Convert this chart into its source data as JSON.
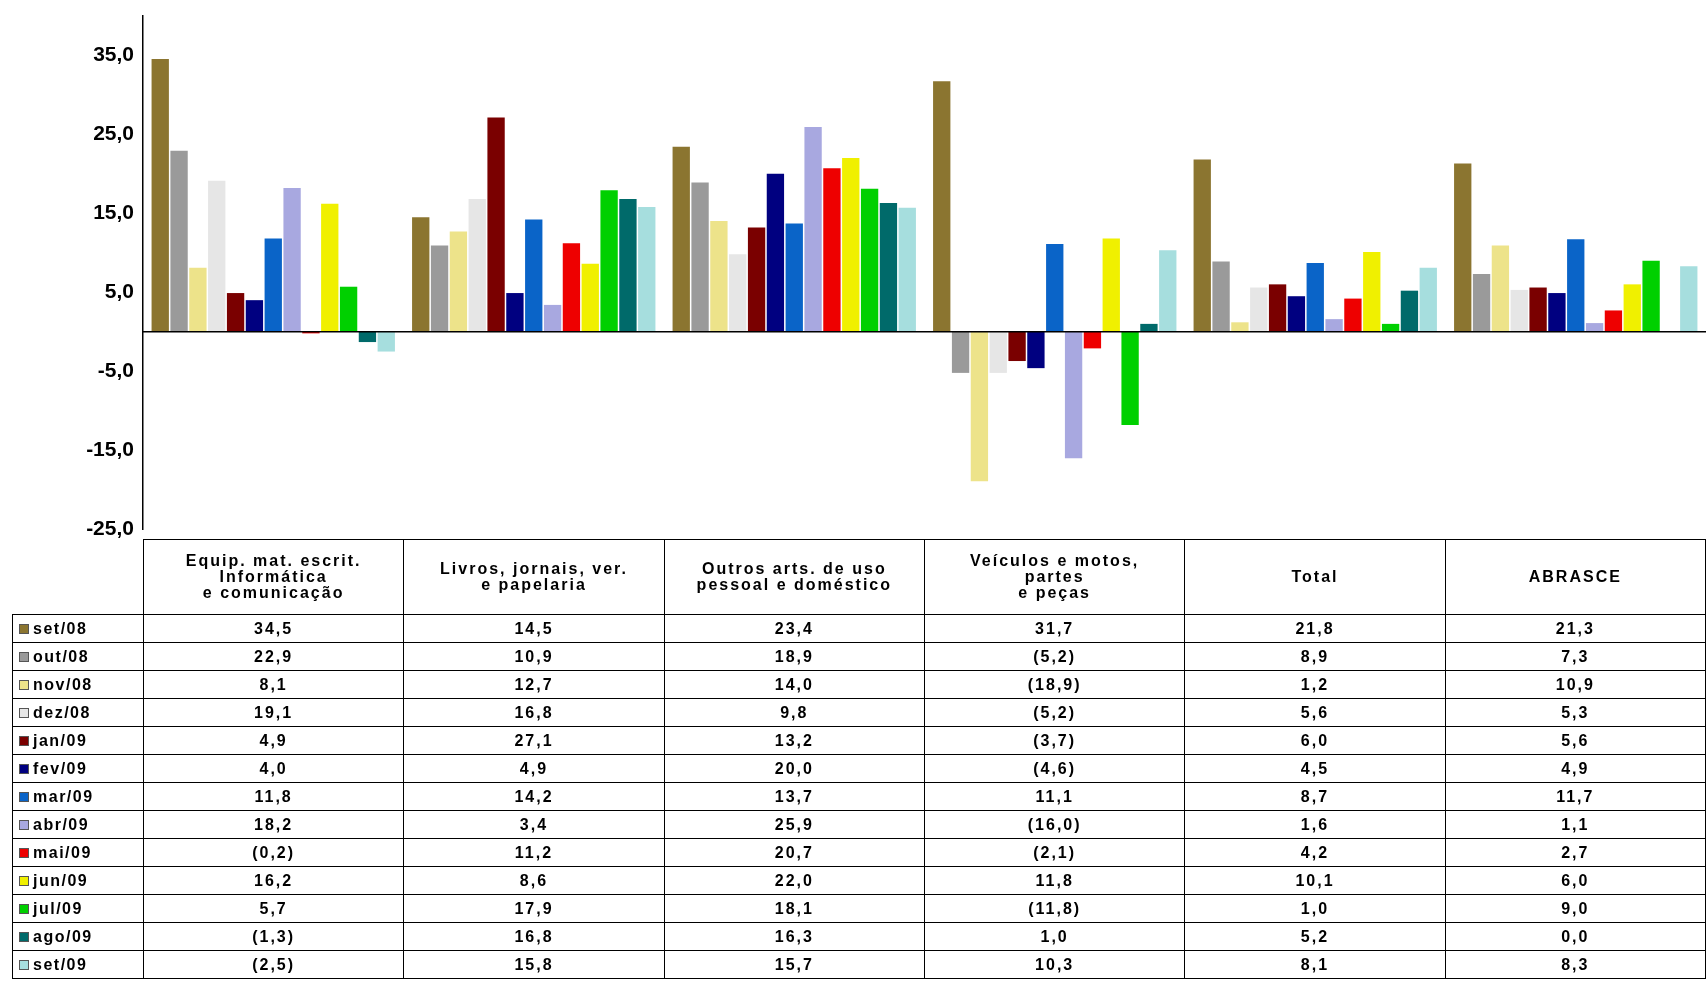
{
  "chart_data": {
    "type": "bar",
    "categories": [
      "Equip. mat. escrit.\nInformática\ne comunicação",
      "Livros, jornais, ver.\ne papelaria",
      "Outros arts. de uso\npessoal e doméstico",
      "Veículos e motos,\npartes\ne peças",
      "Total",
      "ABRASCE"
    ],
    "series": [
      {
        "name": "set/08",
        "color": "#8b7530",
        "values": [
          34.5,
          14.5,
          23.4,
          31.7,
          21.8,
          21.3
        ],
        "value_labels": [
          "34,5",
          "14,5",
          "23,4",
          "31,7",
          "21,8",
          "21,3"
        ]
      },
      {
        "name": "out/08",
        "color": "#9a9a9a",
        "values": [
          22.9,
          10.9,
          18.9,
          -5.2,
          8.9,
          7.3
        ],
        "value_labels": [
          "22,9",
          "10,9",
          "18,9",
          "(5,2)",
          "8,9",
          "7,3"
        ]
      },
      {
        "name": "nov/08",
        "color": "#ede38a",
        "values": [
          8.1,
          12.7,
          14.0,
          -18.9,
          1.2,
          10.9
        ],
        "value_labels": [
          "8,1",
          "12,7",
          "14,0",
          "(18,9)",
          "1,2",
          "10,9"
        ]
      },
      {
        "name": "dez/08",
        "color": "#e6e6e6",
        "values": [
          19.1,
          16.8,
          9.8,
          -5.2,
          5.6,
          5.3
        ],
        "value_labels": [
          "19,1",
          "16,8",
          "9,8",
          "(5,2)",
          "5,6",
          "5,3"
        ]
      },
      {
        "name": "jan/09",
        "color": "#7a0000",
        "values": [
          4.9,
          27.1,
          13.2,
          -3.7,
          6.0,
          5.6
        ],
        "value_labels": [
          "4,9",
          "27,1",
          "13,2",
          "(3,7)",
          "6,0",
          "5,6"
        ]
      },
      {
        "name": "fev/09",
        "color": "#000080",
        "values": [
          4.0,
          4.9,
          20.0,
          -4.6,
          4.5,
          4.9
        ],
        "value_labels": [
          "4,0",
          "4,9",
          "20,0",
          "(4,6)",
          "4,5",
          "4,9"
        ]
      },
      {
        "name": "mar/09",
        "color": "#0a64c8",
        "values": [
          11.8,
          14.2,
          13.7,
          11.1,
          8.7,
          11.7
        ],
        "value_labels": [
          "11,8",
          "14,2",
          "13,7",
          "11,1",
          "8,7",
          "11,7"
        ]
      },
      {
        "name": "abr/09",
        "color": "#a8a8e0",
        "values": [
          18.2,
          3.4,
          25.9,
          -16.0,
          1.6,
          1.1
        ],
        "value_labels": [
          "18,2",
          "3,4",
          "25,9",
          "(16,0)",
          "1,6",
          "1,1"
        ]
      },
      {
        "name": "mai/09",
        "color": "#ee0000",
        "values": [
          -0.2,
          11.2,
          20.7,
          -2.1,
          4.2,
          2.7
        ],
        "value_labels": [
          "(0,2)",
          "11,2",
          "20,7",
          "(2,1)",
          "4,2",
          "2,7"
        ]
      },
      {
        "name": "jun/09",
        "color": "#f0f000",
        "values": [
          16.2,
          8.6,
          22.0,
          11.8,
          10.1,
          6.0
        ],
        "value_labels": [
          "16,2",
          "8,6",
          "22,0",
          "11,8",
          "10,1",
          "6,0"
        ]
      },
      {
        "name": "jul/09",
        "color": "#00d000",
        "values": [
          5.7,
          17.9,
          18.1,
          -11.8,
          1.0,
          9.0
        ],
        "value_labels": [
          "5,7",
          "17,9",
          "18,1",
          "(11,8)",
          "1,0",
          "9,0"
        ]
      },
      {
        "name": "ago/09",
        "color": "#006a6a",
        "values": [
          -1.3,
          16.8,
          16.3,
          1.0,
          5.2,
          0.0
        ],
        "value_labels": [
          "(1,3)",
          "16,8",
          "16,3",
          "1,0",
          "5,2",
          "0,0"
        ]
      },
      {
        "name": "set/09",
        "color": "#a6dede",
        "values": [
          -2.5,
          15.8,
          15.7,
          10.3,
          8.1,
          8.3
        ],
        "value_labels": [
          "(2,5)",
          "15,8",
          "15,7",
          "10,3",
          "8,1",
          "8,3"
        ]
      }
    ],
    "ylim": [
      -25,
      40
    ],
    "yticks": [
      {
        "value": -25,
        "label": "-25,0"
      },
      {
        "value": -15,
        "label": "-15,0"
      },
      {
        "value": -5,
        "label": "-5,0"
      },
      {
        "value": 5,
        "label": "5,0"
      },
      {
        "value": 15,
        "label": "15,0"
      },
      {
        "value": 25,
        "label": "25,0"
      },
      {
        "value": 35,
        "label": "35,0"
      }
    ],
    "grid": false,
    "legend": "bottom"
  }
}
